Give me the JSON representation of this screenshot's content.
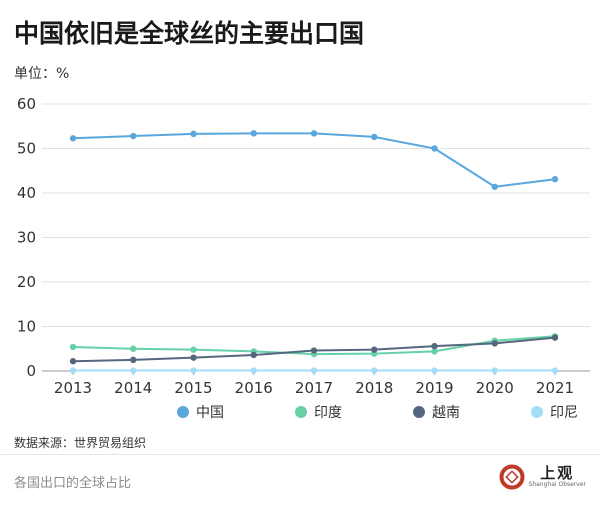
{
  "header": {
    "title": "中国依旧是全球丝的主要出口国",
    "unit_label": "单位：%"
  },
  "footer": {
    "source": "数据来源：世界贸易组织",
    "caption": "各国出口的全球占比"
  },
  "brand": {
    "name": "上观",
    "sub": "Shanghai Observer",
    "color": "#c0392b"
  },
  "chart_data": {
    "type": "line",
    "x": [
      "2013",
      "2014",
      "2015",
      "2016",
      "2017",
      "2018",
      "2019",
      "2020",
      "2021"
    ],
    "ylim": [
      0,
      60
    ],
    "yticks": [
      0,
      10,
      20,
      30,
      40,
      50,
      60
    ],
    "grid": true,
    "legend_position": "bottom",
    "series": [
      {
        "name": "中国",
        "color": "#5aa7dd",
        "values": [
          52.3,
          52.8,
          53.3,
          53.4,
          53.4,
          52.6,
          50.0,
          41.4,
          43.1
        ]
      },
      {
        "name": "印度",
        "color": "#66d1a6",
        "values": [
          5.4,
          5.0,
          4.8,
          4.4,
          3.8,
          3.9,
          4.4,
          6.8,
          7.8
        ]
      },
      {
        "name": "越南",
        "color": "#55677f",
        "values": [
          2.2,
          2.5,
          3.0,
          3.6,
          4.6,
          4.8,
          5.6,
          6.2,
          7.5
        ]
      },
      {
        "name": "印尼",
        "color": "#a3ddf7",
        "values": [
          0.1,
          0.1,
          0.1,
          0.1,
          0.1,
          0.1,
          0.1,
          0.1,
          0.1
        ]
      }
    ]
  }
}
